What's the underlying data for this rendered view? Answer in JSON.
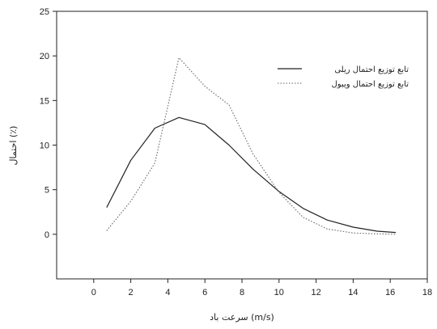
{
  "chart_data": {
    "type": "line",
    "xlabel": "سرعت باد (m/s)",
    "ylabel": "احتمال (٪)",
    "xlim": [
      -2,
      18
    ],
    "ylim": [
      -5,
      25
    ],
    "x_ticks": [
      0,
      2,
      4,
      6,
      8,
      10,
      12,
      14,
      16,
      18
    ],
    "y_ticks": [
      0,
      5,
      10,
      15,
      20,
      25
    ],
    "grid": false,
    "legend_position": "top-right",
    "series": [
      {
        "name": "تابع توزیع احتمال ریلی",
        "style": "solid",
        "color": "#222222",
        "x": [
          0.7,
          2.0,
          3.3,
          4.6,
          6.0,
          7.3,
          8.6,
          10.0,
          11.3,
          12.6,
          14.0,
          15.3,
          16.3
        ],
        "y": [
          3.0,
          8.3,
          11.9,
          13.1,
          12.3,
          10.0,
          7.3,
          4.8,
          2.9,
          1.6,
          0.8,
          0.35,
          0.2
        ]
      },
      {
        "name": "تابع توزیع احتمال ویبول",
        "style": "dotted",
        "color": "#666666",
        "x": [
          0.7,
          2.0,
          3.3,
          4.6,
          6.0,
          7.3,
          8.6,
          10.0,
          11.3,
          12.6,
          14.0,
          15.3,
          16.3
        ],
        "y": [
          0.4,
          3.7,
          8.0,
          19.8,
          16.6,
          14.5,
          9.0,
          4.7,
          1.9,
          0.6,
          0.15,
          0.05,
          0.0
        ]
      }
    ]
  }
}
